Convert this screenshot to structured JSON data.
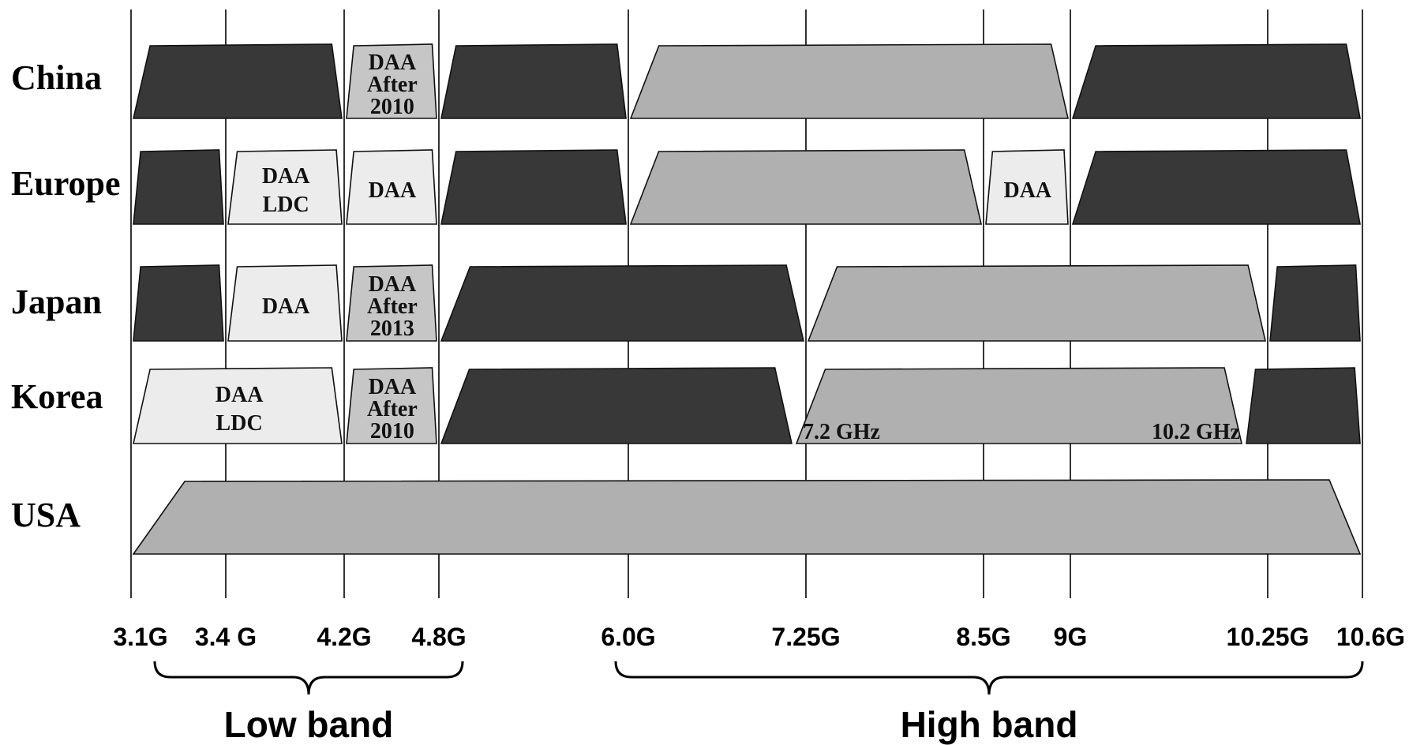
{
  "colors": {
    "dark": "#383838",
    "medium": "#b0b0b0",
    "daa_gray": "#c6c6c6",
    "light": "#ececec"
  },
  "freq_axis": {
    "ticks": [
      {
        "value": 3.1,
        "label": "3.1G"
      },
      {
        "value": 3.4,
        "label": "3.4 G"
      },
      {
        "value": 4.2,
        "label": "4.2G"
      },
      {
        "value": 4.8,
        "label": "4.8G"
      },
      {
        "value": 6.0,
        "label": "6.0G"
      },
      {
        "value": 7.25,
        "label": "7.25G"
      },
      {
        "value": 8.5,
        "label": "8.5G"
      },
      {
        "value": 9.0,
        "label": "9G"
      },
      {
        "value": 10.25,
        "label": "10.25G"
      },
      {
        "value": 10.6,
        "label": "10.6G"
      }
    ]
  },
  "bands": [
    {
      "id": "low-band",
      "label": "Low band",
      "from": 3.1,
      "to": 4.8
    },
    {
      "id": "high-band",
      "label": "High band",
      "from": 6.0,
      "to": 10.6
    }
  ],
  "regions": [
    {
      "id": "china",
      "name": "China",
      "blocks": [
        {
          "from": 3.1,
          "to": 4.2,
          "shade": "dark",
          "label": []
        },
        {
          "from": 4.2,
          "to": 4.8,
          "shade": "daa_gray",
          "label": [
            "DAA",
            "After",
            "2010"
          ]
        },
        {
          "from": 4.8,
          "to": 6.0,
          "shade": "dark",
          "label": []
        },
        {
          "from": 6.0,
          "to": 9.0,
          "shade": "medium",
          "label": []
        },
        {
          "from": 9.0,
          "to": 10.6,
          "shade": "dark",
          "label": []
        }
      ]
    },
    {
      "id": "europe",
      "name": "Europe",
      "blocks": [
        {
          "from": 3.1,
          "to": 3.4,
          "shade": "dark",
          "label": []
        },
        {
          "from": 3.4,
          "to": 4.2,
          "shade": "light",
          "label": [
            "DAA",
            "LDC"
          ]
        },
        {
          "from": 4.2,
          "to": 4.8,
          "shade": "light",
          "label": [
            "DAA"
          ]
        },
        {
          "from": 4.8,
          "to": 6.0,
          "shade": "dark",
          "label": []
        },
        {
          "from": 6.0,
          "to": 8.5,
          "shade": "medium",
          "label": []
        },
        {
          "from": 8.5,
          "to": 9.0,
          "shade": "light",
          "label": [
            "DAA"
          ]
        },
        {
          "from": 9.0,
          "to": 10.6,
          "shade": "dark",
          "label": []
        }
      ]
    },
    {
      "id": "japan",
      "name": "Japan",
      "blocks": [
        {
          "from": 3.1,
          "to": 3.4,
          "shade": "dark",
          "label": []
        },
        {
          "from": 3.4,
          "to": 4.2,
          "shade": "light",
          "label": [
            "DAA"
          ]
        },
        {
          "from": 4.2,
          "to": 4.8,
          "shade": "daa_gray",
          "label": [
            "DAA",
            "After",
            "2013"
          ]
        },
        {
          "from": 4.8,
          "to": 7.25,
          "shade": "dark",
          "label": []
        },
        {
          "from": 7.25,
          "to": 10.25,
          "shade": "medium",
          "label": []
        },
        {
          "from": 10.25,
          "to": 10.6,
          "shade": "dark",
          "label": []
        }
      ]
    },
    {
      "id": "korea",
      "name": "Korea",
      "blocks": [
        {
          "from": 3.1,
          "to": 4.2,
          "shade": "light",
          "label": [
            "DAA",
            "LDC"
          ]
        },
        {
          "from": 4.2,
          "to": 4.8,
          "shade": "daa_gray",
          "label": [
            "DAA",
            "After",
            "2010"
          ]
        },
        {
          "from": 4.8,
          "to": 7.2,
          "shade": "dark",
          "label": []
        },
        {
          "from": 7.2,
          "to": 10.2,
          "shade": "medium",
          "label": [],
          "edge_labels": [
            "7.2 GHz",
            "10.2 GHz"
          ]
        },
        {
          "from": 10.2,
          "to": 10.6,
          "shade": "dark",
          "label": []
        }
      ]
    },
    {
      "id": "usa",
      "name": "USA",
      "blocks": [
        {
          "from": 3.1,
          "to": 10.6,
          "shade": "medium",
          "label": []
        }
      ]
    }
  ]
}
